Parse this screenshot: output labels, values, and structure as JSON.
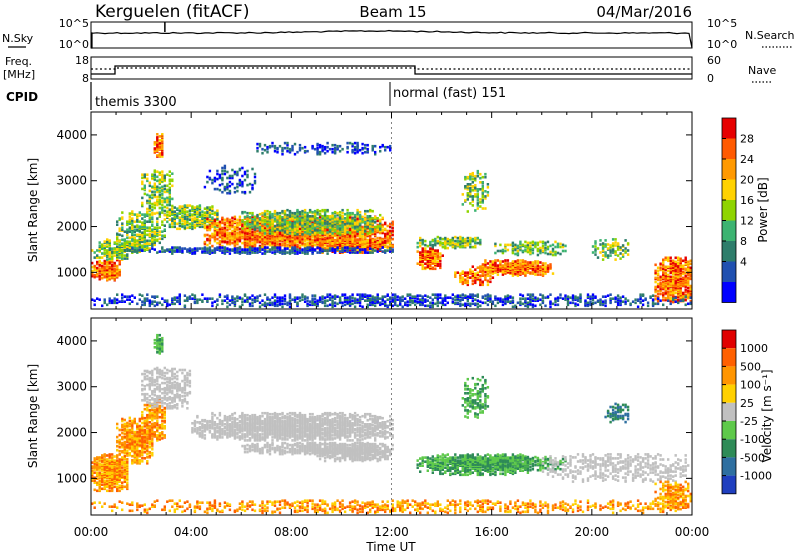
{
  "header": {
    "station": "Kerguelen (fitACF)",
    "beam": "Beam 15",
    "date": "04/Mar/2016"
  },
  "top_panels": {
    "nsky_label": "N.Sky",
    "nsky_ticks": [
      "10^5",
      "10^0"
    ],
    "nsearch_label": "N.Search",
    "nsearch_ticks": [
      "10^5",
      "10^0"
    ],
    "freq_label_1": "Freq.",
    "freq_label_2": "[MHz]",
    "freq_ticks": [
      "18",
      "8"
    ],
    "nave_label": "Nave",
    "nave_ticks": [
      "60",
      "0"
    ],
    "cpid_label": "CPID",
    "cpid_entries": [
      {
        "text": "themis 3300",
        "start_hour": 0
      },
      {
        "text": "normal (fast) 151",
        "start_hour": 12
      }
    ]
  },
  "chart_data": [
    {
      "type": "heatmap",
      "name": "power",
      "ylabel": "Slant Range [km]",
      "xlabel": "",
      "yticks": [
        "4000",
        "3000",
        "2000",
        "1000"
      ],
      "ylim": [
        200,
        4500
      ],
      "xlim": [
        0,
        24
      ],
      "colorbar_label": "Power [dB]",
      "colorbar_ticks": [
        "28",
        "24",
        "20",
        "16",
        "12",
        "8",
        "4"
      ],
      "colorscale": [
        "#0000ff",
        "#2050b0",
        "#2e7d6b",
        "#3cb371",
        "#8fd400",
        "#ffd200",
        "#ff9900",
        "#ff5a00",
        "#e60000"
      ]
    },
    {
      "type": "heatmap",
      "name": "velocity",
      "ylabel": "Slant Range [km]",
      "xlabel": "Time UT",
      "yticks": [
        "4000",
        "3000",
        "2000",
        "1000"
      ],
      "xticks": [
        "00:00",
        "04:00",
        "08:00",
        "12:00",
        "16:00",
        "20:00",
        "00:00"
      ],
      "ylim": [
        200,
        4500
      ],
      "xlim": [
        0,
        24
      ],
      "colorbar_label": "Velocity [m s⁻¹]",
      "colorbar_ticks": [
        "1000",
        "500",
        "100",
        "25",
        "-25",
        "-100",
        "-500",
        "-1000"
      ],
      "colorscale": [
        "#1f3fbf",
        "#2e6fa0",
        "#2e8b57",
        "#5ec94a",
        "#c0c0c0",
        "#ffd000",
        "#ff9500",
        "#ff6000",
        "#e00000"
      ]
    }
  ]
}
